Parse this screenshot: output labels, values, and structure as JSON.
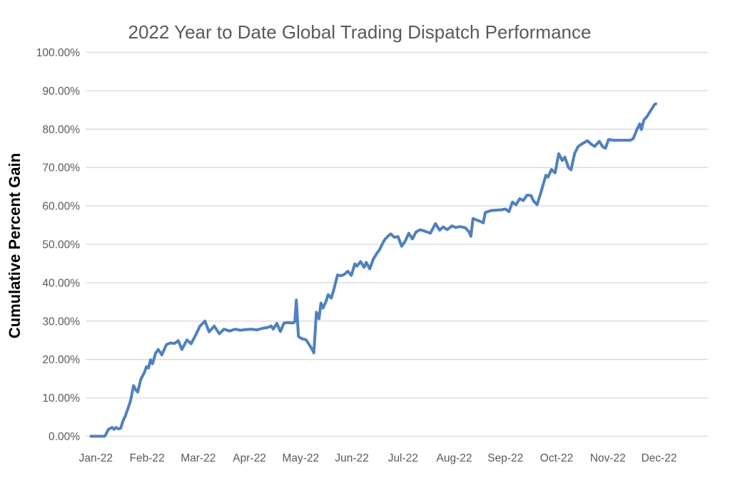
{
  "chart_data": {
    "type": "line",
    "title": "2022 Year to Date Global Trading Dispatch Performance",
    "xlabel": "",
    "ylabel": "Cumulative Percent Gain",
    "x_tick_labels": [
      "Jan-22",
      "Feb-22",
      "Mar-22",
      "Apr-22",
      "May-22",
      "Jun-22",
      "Jul-22",
      "Aug-22",
      "Sep-22",
      "Oct-22",
      "Nov-22",
      "Dec-22"
    ],
    "y_tick_values": [
      0,
      10,
      20,
      30,
      40,
      50,
      60,
      70,
      80,
      90,
      100
    ],
    "y_tick_labels": [
      "0.00%",
      "10.00%",
      "20.00%",
      "30.00%",
      "40.00%",
      "50.00%",
      "60.00%",
      "70.00%",
      "80.00%",
      "90.00%",
      "100.00%"
    ],
    "ylim": [
      0,
      100
    ],
    "x_unit": "month index: 0 = start of Jan-22, 11 = start of Dec-22, fractions = days within month",
    "grid": "horizontal",
    "legend": "none",
    "colors": {
      "line": "#4F81BD",
      "gridline": "#D9D9D9",
      "tick_text": "#595959",
      "title_text": "#595959",
      "axis_title_text": "#000000",
      "background": "#FFFFFF"
    },
    "series": [
      {
        "points": [
          [
            0.0,
            0.0
          ],
          [
            0.27,
            0.0
          ],
          [
            0.34,
            1.8
          ],
          [
            0.41,
            2.3
          ],
          [
            0.45,
            1.8
          ],
          [
            0.49,
            2.3
          ],
          [
            0.54,
            1.9
          ],
          [
            0.58,
            2.1
          ],
          [
            0.62,
            3.9
          ],
          [
            0.67,
            5.3
          ],
          [
            0.73,
            7.6
          ],
          [
            0.77,
            9.2
          ],
          [
            0.83,
            13.2
          ],
          [
            0.87,
            12.1
          ],
          [
            0.91,
            11.5
          ],
          [
            0.97,
            14.8
          ],
          [
            1.04,
            16.6
          ],
          [
            1.08,
            18.1
          ],
          [
            1.12,
            17.8
          ],
          [
            1.16,
            19.9
          ],
          [
            1.2,
            18.9
          ],
          [
            1.26,
            21.7
          ],
          [
            1.31,
            22.6
          ],
          [
            1.38,
            21.2
          ],
          [
            1.47,
            23.9
          ],
          [
            1.55,
            24.3
          ],
          [
            1.63,
            24.2
          ],
          [
            1.7,
            24.9
          ],
          [
            1.77,
            22.6
          ],
          [
            1.87,
            25.1
          ],
          [
            1.95,
            24.1
          ],
          [
            2.04,
            26.4
          ],
          [
            2.12,
            28.6
          ],
          [
            2.22,
            30.0
          ],
          [
            2.3,
            27.2
          ],
          [
            2.4,
            28.7
          ],
          [
            2.5,
            26.7
          ],
          [
            2.59,
            27.9
          ],
          [
            2.7,
            27.4
          ],
          [
            2.81,
            27.9
          ],
          [
            2.91,
            27.6
          ],
          [
            3.01,
            27.8
          ],
          [
            3.12,
            27.9
          ],
          [
            3.23,
            27.7
          ],
          [
            3.34,
            28.1
          ],
          [
            3.43,
            28.3
          ],
          [
            3.51,
            28.7
          ],
          [
            3.55,
            27.9
          ],
          [
            3.62,
            29.4
          ],
          [
            3.69,
            27.3
          ],
          [
            3.76,
            29.5
          ],
          [
            3.84,
            29.6
          ],
          [
            3.93,
            29.5
          ],
          [
            3.97,
            29.8
          ],
          [
            4.0,
            35.5
          ],
          [
            4.04,
            26.0
          ],
          [
            4.11,
            25.4
          ],
          [
            4.19,
            25.1
          ],
          [
            4.26,
            23.7
          ],
          [
            4.32,
            22.3
          ],
          [
            4.34,
            21.7
          ],
          [
            4.37,
            28.0
          ],
          [
            4.39,
            32.3
          ],
          [
            4.44,
            30.6
          ],
          [
            4.48,
            34.7
          ],
          [
            4.52,
            33.4
          ],
          [
            4.58,
            35.2
          ],
          [
            4.62,
            36.9
          ],
          [
            4.68,
            36.0
          ],
          [
            4.73,
            38.2
          ],
          [
            4.8,
            42.0
          ],
          [
            4.87,
            41.8
          ],
          [
            4.94,
            42.2
          ],
          [
            5.0,
            43.0
          ],
          [
            5.07,
            41.9
          ],
          [
            5.14,
            44.9
          ],
          [
            5.18,
            44.3
          ],
          [
            5.25,
            45.5
          ],
          [
            5.32,
            44.0
          ],
          [
            5.36,
            45.3
          ],
          [
            5.43,
            43.6
          ],
          [
            5.5,
            46.2
          ],
          [
            5.57,
            47.7
          ],
          [
            5.62,
            48.6
          ],
          [
            5.69,
            50.5
          ],
          [
            5.73,
            51.4
          ],
          [
            5.8,
            52.3
          ],
          [
            5.84,
            52.7
          ],
          [
            5.91,
            51.8
          ],
          [
            5.98,
            52.0
          ],
          [
            6.05,
            49.5
          ],
          [
            6.12,
            50.8
          ],
          [
            6.19,
            52.9
          ],
          [
            6.26,
            51.4
          ],
          [
            6.33,
            53.2
          ],
          [
            6.41,
            53.8
          ],
          [
            6.51,
            53.4
          ],
          [
            6.61,
            52.9
          ],
          [
            6.71,
            55.4
          ],
          [
            6.79,
            53.7
          ],
          [
            6.86,
            54.5
          ],
          [
            6.94,
            53.8
          ],
          [
            7.03,
            54.8
          ],
          [
            7.1,
            54.4
          ],
          [
            7.19,
            54.6
          ],
          [
            7.29,
            54.3
          ],
          [
            7.36,
            53.3
          ],
          [
            7.4,
            52.1
          ],
          [
            7.44,
            56.7
          ],
          [
            7.54,
            56.2
          ],
          [
            7.64,
            55.6
          ],
          [
            7.68,
            58.3
          ],
          [
            7.79,
            58.8
          ],
          [
            7.9,
            58.9
          ],
          [
            8.0,
            59.0
          ],
          [
            8.07,
            59.2
          ],
          [
            8.14,
            58.5
          ],
          [
            8.21,
            61.0
          ],
          [
            8.28,
            60.3
          ],
          [
            8.35,
            61.9
          ],
          [
            8.42,
            61.4
          ],
          [
            8.49,
            62.8
          ],
          [
            8.57,
            62.7
          ],
          [
            8.62,
            61.3
          ],
          [
            8.69,
            60.3
          ],
          [
            8.76,
            63.4
          ],
          [
            8.86,
            68.0
          ],
          [
            8.9,
            67.5
          ],
          [
            8.97,
            69.5
          ],
          [
            9.04,
            68.6
          ],
          [
            9.11,
            73.6
          ],
          [
            9.18,
            71.8
          ],
          [
            9.23,
            72.7
          ],
          [
            9.3,
            70.0
          ],
          [
            9.35,
            69.4
          ],
          [
            9.42,
            73.7
          ],
          [
            9.49,
            75.5
          ],
          [
            9.58,
            76.3
          ],
          [
            9.67,
            77.0
          ],
          [
            9.74,
            76.1
          ],
          [
            9.81,
            75.5
          ],
          [
            9.9,
            76.8
          ],
          [
            9.97,
            75.4
          ],
          [
            10.02,
            75.0
          ],
          [
            10.08,
            77.3
          ],
          [
            10.18,
            77.1
          ],
          [
            10.32,
            77.1
          ],
          [
            10.5,
            77.1
          ],
          [
            10.56,
            77.5
          ],
          [
            10.64,
            80.1
          ],
          [
            10.69,
            81.4
          ],
          [
            10.72,
            79.9
          ],
          [
            10.77,
            82.4
          ],
          [
            10.83,
            83.3
          ],
          [
            10.9,
            84.8
          ],
          [
            10.97,
            86.3
          ],
          [
            11.0,
            86.6
          ]
        ]
      }
    ]
  }
}
